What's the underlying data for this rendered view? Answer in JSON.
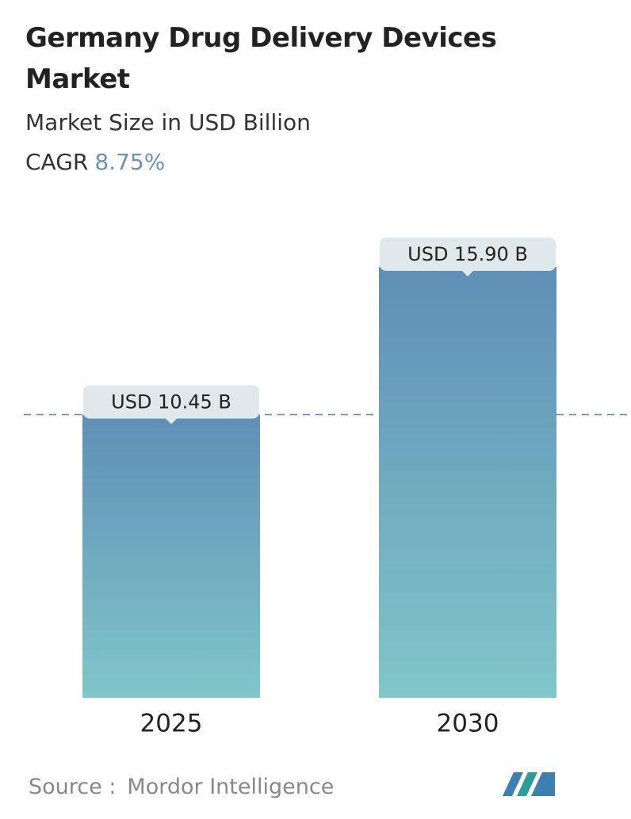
{
  "chart_data": {
    "type": "bar",
    "title": "Germany Drug Delivery Devices Market",
    "subtitle": "Market Size in USD Billion",
    "cagr_label": "CAGR",
    "cagr": "8.75%",
    "categories": [
      "2025",
      "2030"
    ],
    "values": [
      10.45,
      15.9
    ],
    "value_labels": [
      "USD 10.45 B",
      "USD 15.90 B"
    ],
    "source_label": "Source :",
    "source": "Mordor Intelligence"
  }
}
